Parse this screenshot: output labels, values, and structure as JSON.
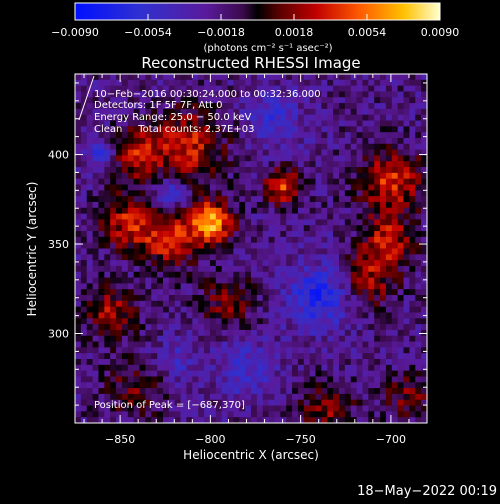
{
  "chart_data": {
    "type": "heatmap",
    "title": "Reconstructed RHESSI Image",
    "xlabel": "Heliocentric X (arcsec)",
    "ylabel": "Heliocentric Y (arcsec)",
    "xlim": [
      -875,
      -680
    ],
    "ylim": [
      250,
      445
    ],
    "xticks": [
      -850,
      -800,
      -750,
      -700
    ],
    "xtick_labels": [
      "−850",
      "−800",
      "−750",
      "−700"
    ],
    "yticks": [
      300,
      350,
      400
    ],
    "ytick_labels": [
      "300",
      "350",
      "400"
    ],
    "colorbar": {
      "range": [
        -0.009,
        0.009
      ],
      "ticks": [
        -0.009,
        -0.0054,
        -0.0018,
        0.0018,
        0.0054,
        0.009
      ],
      "tick_labels": [
        "−0.0090",
        "−0.0054",
        "−0.0018",
        "0.0018",
        "0.0054",
        "0.0090"
      ],
      "unit_label": "(photons cm⁻² s⁻¹ asec⁻²)"
    },
    "annotations": [
      "10−Feb−2016 00:30:24.000 to 00:32:36.000",
      "Detectors: 1F 5F 7F, Att 0",
      "Energy Range: 25.0 − 50.0 keV",
      "Clean     Total counts: 2.37E+03"
    ],
    "peak_label": "Position of Peak = [−687,370]",
    "peak": [
      -687,
      370
    ],
    "sources": [
      {
        "x": -800,
        "y": 362,
        "sigma": 8,
        "amp": 0.009
      },
      {
        "x": -822,
        "y": 352,
        "sigma": 10,
        "amp": 0.0058
      },
      {
        "x": -845,
        "y": 362,
        "sigma": 11,
        "amp": 0.005
      },
      {
        "x": -812,
        "y": 405,
        "sigma": 14,
        "amp": 0.0052
      },
      {
        "x": -842,
        "y": 400,
        "sigma": 10,
        "amp": 0.005
      },
      {
        "x": -760,
        "y": 382,
        "sigma": 7,
        "amp": 0.0062
      },
      {
        "x": -700,
        "y": 385,
        "sigma": 12,
        "amp": 0.0056
      },
      {
        "x": -702,
        "y": 352,
        "sigma": 10,
        "amp": 0.005
      },
      {
        "x": -712,
        "y": 330,
        "sigma": 10,
        "amp": 0.0042
      },
      {
        "x": -855,
        "y": 312,
        "sigma": 10,
        "amp": 0.0042
      },
      {
        "x": -790,
        "y": 318,
        "sigma": 10,
        "amp": 0.0034
      },
      {
        "x": -842,
        "y": 270,
        "sigma": 12,
        "amp": 0.0028
      },
      {
        "x": -735,
        "y": 258,
        "sigma": 10,
        "amp": 0.0038
      },
      {
        "x": -690,
        "y": 265,
        "sigma": 9,
        "amp": 0.0032
      },
      {
        "x": -740,
        "y": 320,
        "sigma": 12,
        "amp": -0.005
      },
      {
        "x": -822,
        "y": 378,
        "sigma": 6,
        "amp": -0.0042
      },
      {
        "x": -860,
        "y": 400,
        "sigma": 7,
        "amp": -0.0036
      },
      {
        "x": -765,
        "y": 420,
        "sigma": 11,
        "amp": -0.003
      },
      {
        "x": -780,
        "y": 280,
        "sigma": 12,
        "amp": -0.0028
      },
      {
        "x": -820,
        "y": 285,
        "sigma": 9,
        "amp": -0.0022
      }
    ]
  },
  "footer": {
    "timestamp": "18−May−2022 00:19"
  }
}
